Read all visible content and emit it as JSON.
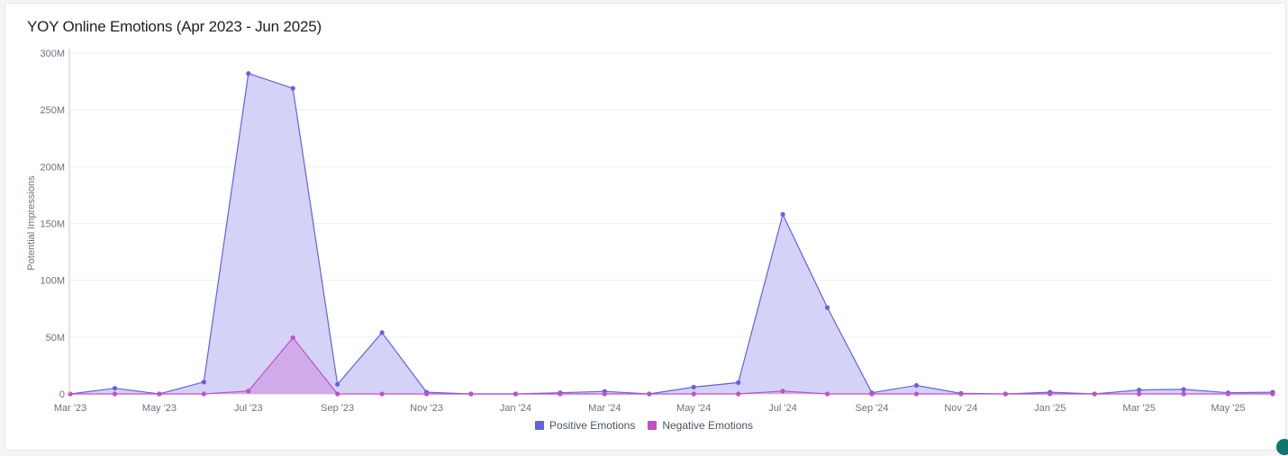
{
  "title": "YOY Online Emotions (Apr 2023 - Jun 2025)",
  "chart_data": {
    "type": "area",
    "title": "YOY Online Emotions (Apr 2023 - Jun 2025)",
    "ylabel": "Potential Impressions",
    "xlabel": "",
    "ylim": [
      0,
      300000000
    ],
    "yticks": [
      {
        "value": 0,
        "label": "0"
      },
      {
        "value": 50000000,
        "label": "50M"
      },
      {
        "value": 100000000,
        "label": "100M"
      },
      {
        "value": 150000000,
        "label": "150M"
      },
      {
        "value": 200000000,
        "label": "200M"
      },
      {
        "value": 250000000,
        "label": "250M"
      },
      {
        "value": 300000000,
        "label": "300M"
      }
    ],
    "x_labels": [
      "Mar '23",
      "May '23",
      "Jul '23",
      "Sep '23",
      "Nov '23",
      "Jan '24",
      "Mar '24",
      "May '24",
      "Jul '24",
      "Sep '24",
      "Nov '24",
      "Jan '25",
      "Mar '25",
      "May '25"
    ],
    "x": [
      "Mar '23",
      "Apr '23",
      "May '23",
      "Jun '23",
      "Jul '23",
      "Aug '23",
      "Sep '23",
      "Oct '23",
      "Nov '23",
      "Dec '23",
      "Jan '24",
      "Feb '24",
      "Mar '24",
      "Apr '24",
      "May '24",
      "Jun '24",
      "Jul '24",
      "Aug '24",
      "Sep '24",
      "Oct '24",
      "Nov '24",
      "Dec '24",
      "Jan '25",
      "Feb '25",
      "Mar '25",
      "Apr '25",
      "May '25",
      "Jun '25"
    ],
    "series": [
      {
        "name": "Positive Emotions",
        "color": "#6262e0",
        "fill": "#d2d1f7",
        "values": [
          0,
          5000000,
          0,
          10500000,
          282000000,
          269000000,
          8500000,
          54000000,
          1500000,
          0,
          0,
          1000000,
          2200000,
          0,
          6000000,
          10000000,
          158000000,
          76000000,
          1000000,
          7500000,
          500000,
          0,
          1500000,
          0,
          3500000,
          4000000,
          1000000,
          1500000
        ]
      },
      {
        "name": "Negative Emotions",
        "color": "#c050c8",
        "fill": "#cfa3e6",
        "values": [
          0,
          0,
          0,
          0,
          2500000,
          49500000,
          0,
          0,
          0,
          0,
          0,
          0,
          0,
          0,
          0,
          0,
          2500000,
          0,
          0,
          0,
          0,
          0,
          0,
          0,
          0,
          0,
          0,
          0
        ]
      }
    ],
    "grid": true,
    "legend": "bottom-center"
  }
}
